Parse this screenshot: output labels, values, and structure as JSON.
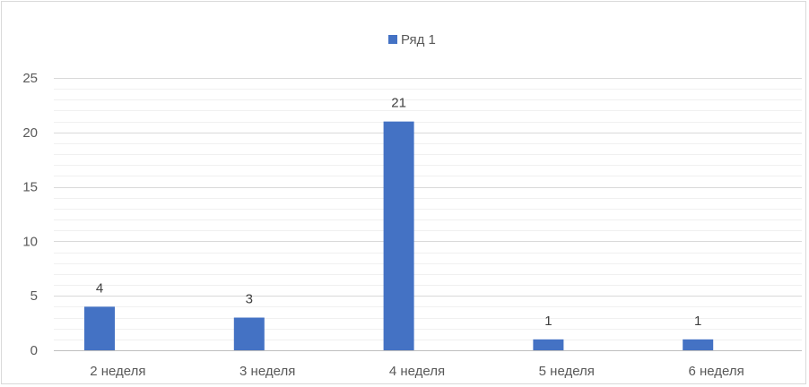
{
  "chart_data": {
    "type": "bar",
    "categories": [
      "2 неделя",
      "3 неделя",
      "4 неделя",
      "5 неделя",
      "6 неделя"
    ],
    "series": [
      {
        "name": "Ряд 1",
        "values": [
          4,
          3,
          21,
          1,
          1
        ],
        "color": "#4472c4"
      }
    ],
    "title": "",
    "xlabel": "",
    "ylabel": "",
    "ylim": [
      0,
      25
    ],
    "y_ticks": [
      "0",
      "5",
      "10",
      "15",
      "20",
      "25"
    ],
    "data_labels": [
      "4",
      "3",
      "21",
      "1",
      "1"
    ],
    "grid": true,
    "legend": "top-center"
  }
}
